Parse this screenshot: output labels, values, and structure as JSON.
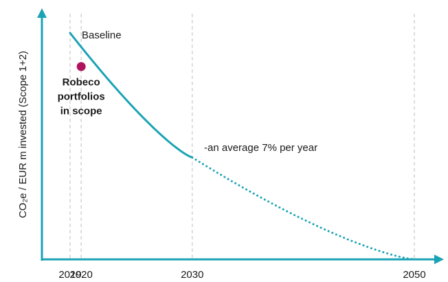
{
  "chart_data": {
    "type": "line",
    "ylabel": "CO₂e / EUR m invested (Scope 1+2)",
    "x_ticks": [
      "2019",
      "2020",
      "2030",
      "2050"
    ],
    "xlim": [
      2019,
      2050
    ],
    "series": [
      {
        "name": "Baseline",
        "x": [
          2019,
          2030
        ],
        "y": [
          100,
          45
        ],
        "style": "solid"
      },
      {
        "name": "",
        "x": [
          2030,
          2050
        ],
        "y": [
          45,
          0
        ],
        "style": "dotted"
      }
    ],
    "points": [
      {
        "label": "Robeco portfolios in scope",
        "x": 2020,
        "y": 85,
        "label_lines": [
          "Robeco",
          "portfolios",
          "in scope"
        ]
      }
    ],
    "annotations": {
      "baseline": "Baseline",
      "rate": "-an average 7% per year"
    },
    "gridlines": "vertical dashed at tick years",
    "colors": {
      "line": "#1aa3b5",
      "axis": "#1aa3b5",
      "grid": "#c8c8c8",
      "point": "#b0125f",
      "text": "#1a1a1a"
    }
  }
}
